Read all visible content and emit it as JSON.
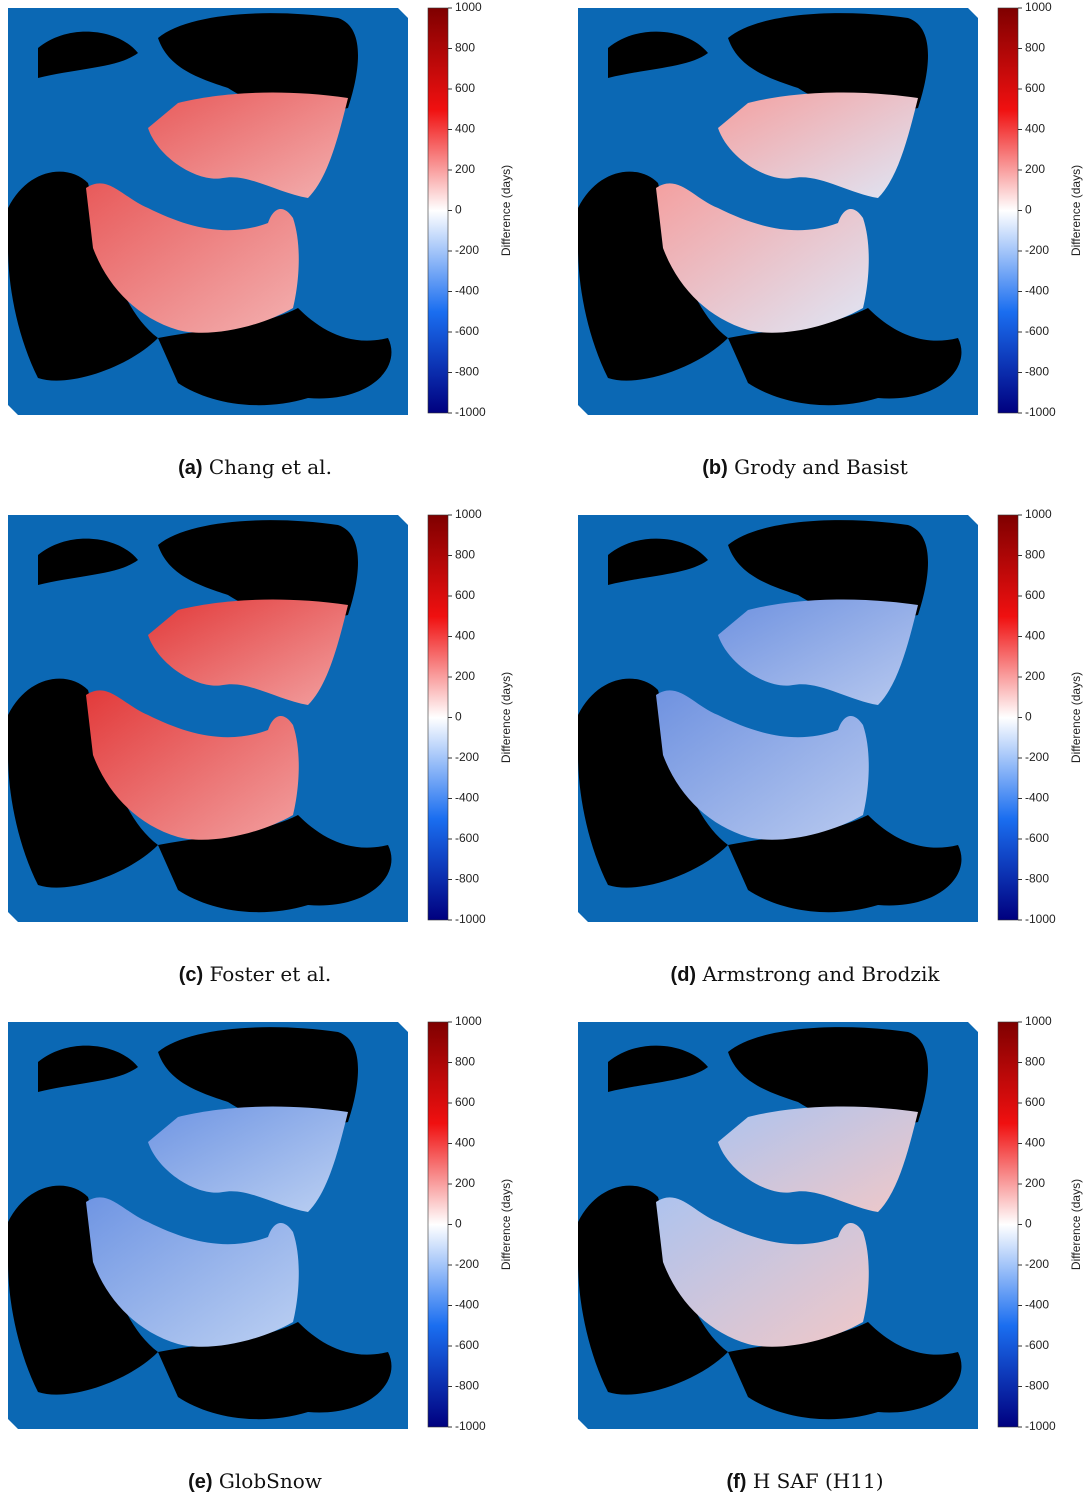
{
  "panels": [
    {
      "label": "(a)",
      "caption": "Chang et al.",
      "colorbar": {
        "label": "Difference (days)",
        "ticks": [
          1000,
          800,
          600,
          400,
          200,
          0,
          -200,
          -400,
          -600,
          -800,
          -1000
        ]
      }
    },
    {
      "label": "(b)",
      "caption": "Grody and Basist",
      "colorbar": {
        "label": "Difference (days)",
        "ticks": [
          1000,
          800,
          600,
          400,
          200,
          0,
          -200,
          -400,
          -600,
          -800,
          -1000
        ]
      }
    },
    {
      "label": "(c)",
      "caption": "Foster et al.",
      "colorbar": {
        "label": "Difference (days)",
        "ticks": [
          1000,
          800,
          600,
          400,
          200,
          0,
          -200,
          -400,
          -600,
          -800,
          -1000
        ]
      }
    },
    {
      "label": "(d)",
      "caption": "Armstrong and Brodzik",
      "colorbar": {
        "label": "Difference (days)",
        "ticks": [
          1000,
          800,
          600,
          400,
          200,
          0,
          -200,
          -400,
          -600,
          -800,
          -1000
        ]
      }
    },
    {
      "label": "(e)",
      "caption": "GlobSnow",
      "colorbar": {
        "label": "Difference (days)",
        "ticks": [
          1000,
          800,
          600,
          400,
          200,
          0,
          -200,
          -400,
          -600,
          -800,
          -1000
        ]
      }
    },
    {
      "label": "(f)",
      "caption": "H SAF (H11)",
      "colorbar": {
        "label": "Difference (days)",
        "ticks": [
          1000,
          800,
          600,
          400,
          200,
          0,
          -200,
          -400,
          -600,
          -800,
          -1000
        ]
      }
    }
  ]
}
